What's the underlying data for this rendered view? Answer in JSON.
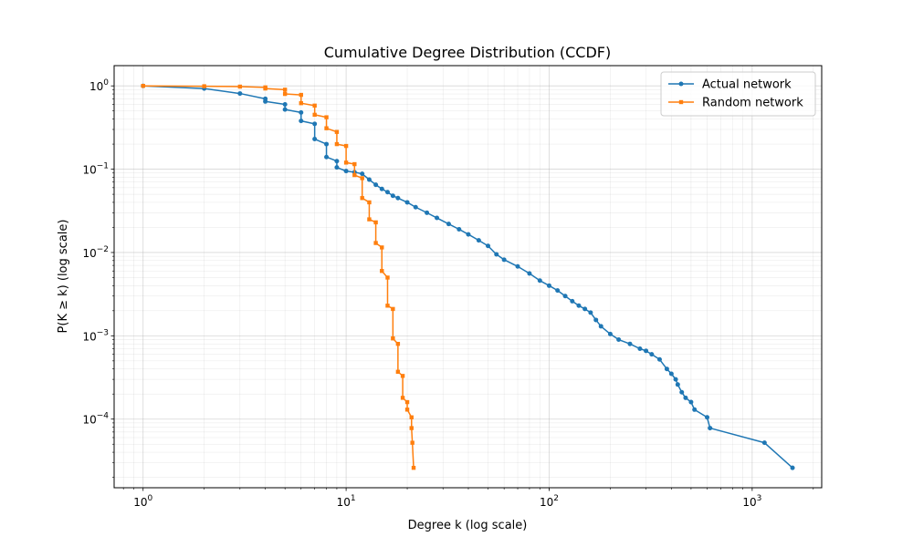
{
  "chart_data": {
    "type": "line",
    "title": "Cumulative Degree Distribution (CCDF)",
    "xlabel": "Degree k (log scale)",
    "ylabel": "P(K ≥ k) (log scale)",
    "xscale": "log",
    "yscale": "log",
    "xlim": [
      0.72,
      2200
    ],
    "ylim": [
      1.5e-05,
      1.75
    ],
    "x_ticks": [
      1,
      10,
      100,
      1000
    ],
    "y_ticks": [
      0.0001,
      0.001,
      0.01,
      0.1,
      1
    ],
    "grid": true,
    "legend_position": "top-right",
    "series": [
      {
        "name": "Actual network",
        "color": "#1f77b4",
        "marker": "circle",
        "points": [
          [
            1,
            1.0
          ],
          [
            2,
            0.93
          ],
          [
            3,
            0.81
          ],
          [
            4,
            0.7
          ],
          [
            4,
            0.65
          ],
          [
            5,
            0.6
          ],
          [
            5,
            0.52
          ],
          [
            6,
            0.48
          ],
          [
            6,
            0.38
          ],
          [
            7,
            0.35
          ],
          [
            7,
            0.23
          ],
          [
            8,
            0.2
          ],
          [
            8,
            0.14
          ],
          [
            9,
            0.125
          ],
          [
            9,
            0.105
          ],
          [
            10,
            0.095
          ],
          [
            11,
            0.092
          ],
          [
            12,
            0.088
          ],
          [
            13,
            0.075
          ],
          [
            14,
            0.065
          ],
          [
            15,
            0.058
          ],
          [
            16,
            0.053
          ],
          [
            17,
            0.048
          ],
          [
            18,
            0.045
          ],
          [
            20,
            0.04
          ],
          [
            22,
            0.035
          ],
          [
            25,
            0.03
          ],
          [
            28,
            0.026
          ],
          [
            32,
            0.022
          ],
          [
            36,
            0.019
          ],
          [
            40,
            0.0165
          ],
          [
            45,
            0.014
          ],
          [
            50,
            0.012
          ],
          [
            55,
            0.0095
          ],
          [
            60,
            0.0082
          ],
          [
            70,
            0.0068
          ],
          [
            80,
            0.0056
          ],
          [
            90,
            0.0046
          ],
          [
            100,
            0.004
          ],
          [
            110,
            0.0035
          ],
          [
            120,
            0.003
          ],
          [
            130,
            0.0026
          ],
          [
            140,
            0.0023
          ],
          [
            150,
            0.0021
          ],
          [
            160,
            0.0019
          ],
          [
            170,
            0.00155
          ],
          [
            180,
            0.0013
          ],
          [
            200,
            0.00105
          ],
          [
            220,
            0.0009
          ],
          [
            250,
            0.0008
          ],
          [
            280,
            0.0007
          ],
          [
            300,
            0.00066
          ],
          [
            320,
            0.0006
          ],
          [
            350,
            0.00052
          ],
          [
            380,
            0.0004
          ],
          [
            400,
            0.00035
          ],
          [
            420,
            0.0003
          ],
          [
            430,
            0.00026
          ],
          [
            450,
            0.00021
          ],
          [
            470,
            0.00018
          ],
          [
            500,
            0.00016
          ],
          [
            520,
            0.00013
          ],
          [
            600,
            0.000105
          ],
          [
            620,
            7.8e-05
          ],
          [
            1150,
            5.2e-05
          ],
          [
            1580,
            2.6e-05
          ]
        ]
      },
      {
        "name": "Random network",
        "color": "#ff7f0e",
        "marker": "square",
        "points": [
          [
            1,
            1.0
          ],
          [
            2,
            0.99
          ],
          [
            3,
            0.98
          ],
          [
            4,
            0.96
          ],
          [
            4,
            0.93
          ],
          [
            5,
            0.9
          ],
          [
            5,
            0.8
          ],
          [
            6,
            0.78
          ],
          [
            6,
            0.62
          ],
          [
            7,
            0.58
          ],
          [
            7,
            0.45
          ],
          [
            8,
            0.42
          ],
          [
            8,
            0.31
          ],
          [
            9,
            0.28
          ],
          [
            9,
            0.2
          ],
          [
            10,
            0.19
          ],
          [
            10,
            0.12
          ],
          [
            11,
            0.115
          ],
          [
            11,
            0.085
          ],
          [
            12,
            0.078
          ],
          [
            12,
            0.045
          ],
          [
            13,
            0.04
          ],
          [
            13,
            0.025
          ],
          [
            14,
            0.023
          ],
          [
            14,
            0.013
          ],
          [
            15,
            0.0115
          ],
          [
            15,
            0.006
          ],
          [
            16,
            0.005
          ],
          [
            16,
            0.0023
          ],
          [
            17,
            0.0021
          ],
          [
            17,
            0.00093
          ],
          [
            18,
            0.0008
          ],
          [
            18,
            0.00037
          ],
          [
            19,
            0.00033
          ],
          [
            19,
            0.00018
          ],
          [
            20,
            0.00016
          ],
          [
            20,
            0.00013
          ],
          [
            21,
            0.000105
          ],
          [
            21,
            7.8e-05
          ],
          [
            21.2,
            5.2e-05
          ],
          [
            21.5,
            2.6e-05
          ]
        ]
      }
    ]
  }
}
